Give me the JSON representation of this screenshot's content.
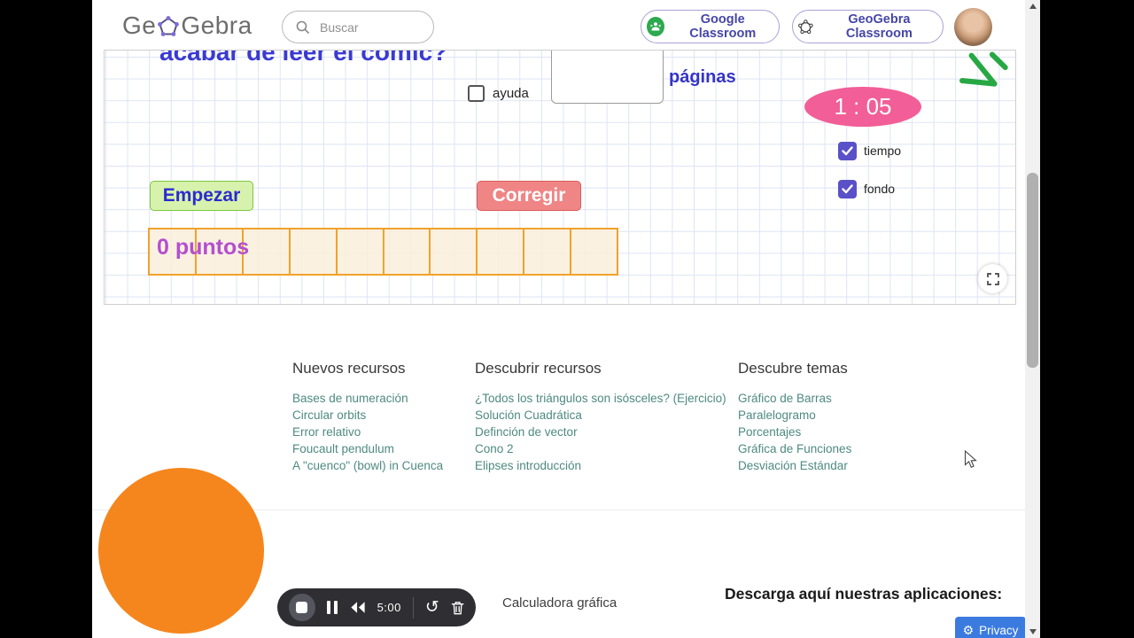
{
  "header": {
    "logo_left": "Ge",
    "logo_right": "Gebra",
    "search_placeholder": "Buscar",
    "google_classroom_label": "Google Classroom",
    "geogebra_classroom_label": "GeoGebra Classroom"
  },
  "applet": {
    "title": "acabar de leer el cómic?",
    "ayuda_label": "ayuda",
    "input_value": "",
    "paginas_label": "páginas",
    "timer_value": "1 : 05",
    "tiempo_label": "tiempo",
    "fondo_label": "fondo",
    "empezar_label": "Empezar",
    "corregir_label": "Corregir",
    "puntos_label": "0 puntos",
    "score_cells": 10
  },
  "footer": {
    "columns": [
      {
        "title": "Nuevos recursos",
        "links": [
          "Bases de numeración",
          "Circular orbits",
          "Error relativo",
          "Foucault pendulum",
          "A \"cuenco\" (bowl) in Cuenca"
        ]
      },
      {
        "title": "Descubrir recursos",
        "links": [
          "¿Todos los triángulos son isósceles? (Ejercicio)",
          "Solución Cuadrática",
          "Definción de vector",
          "Cono 2",
          "Elipses introducción"
        ]
      },
      {
        "title": "Descubre temas",
        "links": [
          "Gráfico de Barras",
          "Paralelogramo",
          "Porcentajes",
          "Gráfica de Funciones",
          "Desviación Estándar"
        ]
      }
    ],
    "player_time": "5:00",
    "calculator_label": "Calculadora gráfica",
    "download_label": "Descarga aquí nuestras aplicaciones:",
    "privacy_label": "Privacy"
  },
  "colors": {
    "accent_blue": "#3434c8",
    "timer_pink": "#f25e97",
    "checkbox_purple": "#5a50c8",
    "empezar_green": "#d7f2ac",
    "corregir_red": "#ef8585",
    "score_orange": "#f0a22c",
    "puntos_purple": "#b44fd0",
    "link_teal": "#4e8a80",
    "privacy_blue": "#3b7be0",
    "circle_orange": "#f5861d"
  }
}
